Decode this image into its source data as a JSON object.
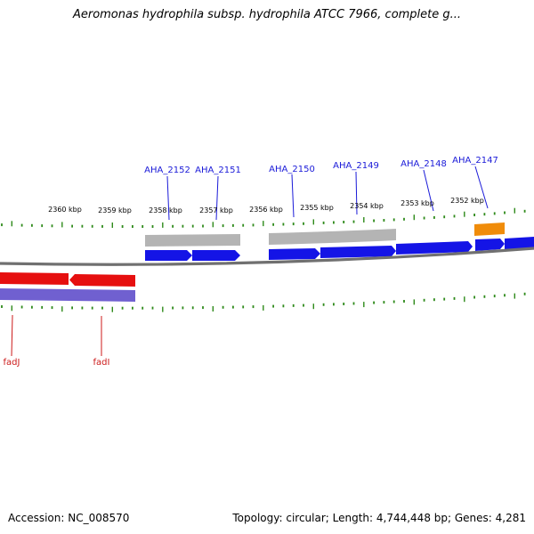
{
  "header": {
    "title": "Aeromonas hydrophila subsp. hydrophila ATCC 7966, complete g..."
  },
  "footer": {
    "accession": "Accession: NC_008570",
    "topology": "Topology: circular; Length: 4,744,448 bp; Genes: 4,281"
  },
  "colors": {
    "forward_cds": "#1414e6",
    "reverse_cds": "#e60f0f",
    "gray_feature": "#b4b4b4",
    "orange_feature": "#f08c0a",
    "purple_track": "#7060d0",
    "backbone": "#707070",
    "tick": "#2e8a1a",
    "gene_label": "#1a1ad8",
    "feature_label": "#cc1a1a"
  },
  "scale_labels": [
    "2360 kbp",
    "2359 kbp",
    "2358 kbp",
    "2357 kbp",
    "2356 kbp",
    "2355 kbp",
    "2354 kbp",
    "2353 kbp",
    "2352 kbp"
  ],
  "forward_gene_labels": [
    "AHA_2152",
    "AHA_2151",
    "AHA_2150",
    "AHA_2149",
    "AHA_2148",
    "AHA_2147"
  ],
  "reverse_feature_labels": [
    "fadJ",
    "fadI"
  ]
}
